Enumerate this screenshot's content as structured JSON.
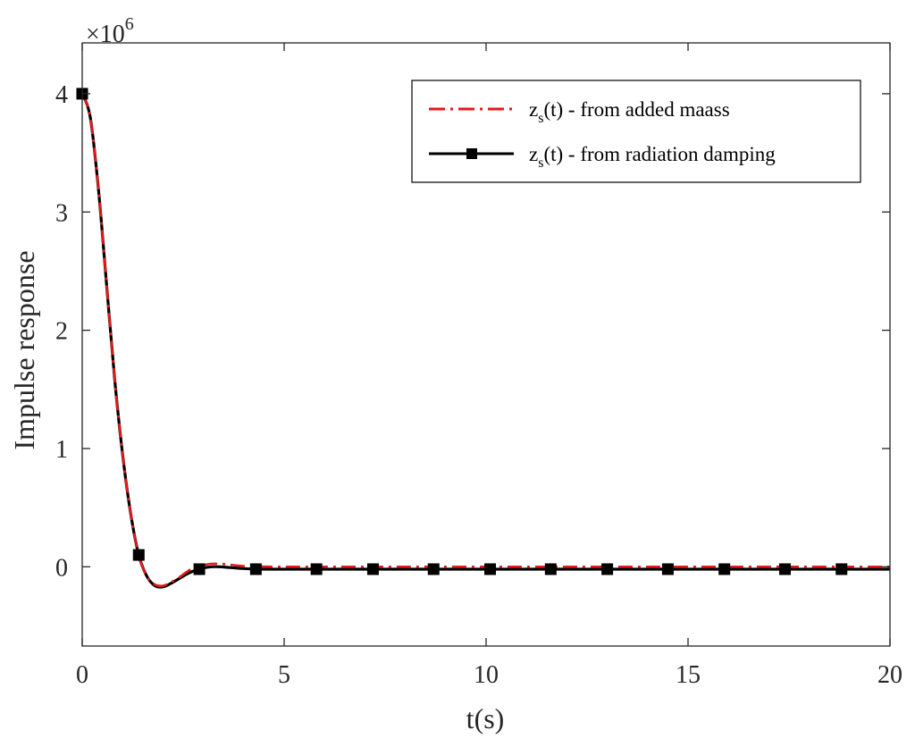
{
  "chart_data": {
    "type": "line",
    "xlabel": "t(s)",
    "ylabel": "Impulse response",
    "y_multiplier": {
      "base": "×10",
      "exponent": "6"
    },
    "xlim": [
      0,
      20
    ],
    "ylim": [
      -0.67,
      4.43
    ],
    "x_ticks": [
      0,
      5,
      10,
      15,
      20
    ],
    "x_tick_labels": [
      "0",
      "5",
      "10",
      "15",
      "20"
    ],
    "y_ticks": [
      0,
      1,
      2,
      3,
      4
    ],
    "y_tick_labels": [
      "0",
      "1",
      "2",
      "3",
      "4"
    ],
    "grid": false,
    "box": true,
    "legend": {
      "position": "top-right",
      "entries": [
        {
          "prefix": "z",
          "sub": "s",
          "suffix": "(t) - from added maass"
        },
        {
          "prefix": "z",
          "sub": "s",
          "suffix": "(t) - from radiation damping"
        }
      ]
    },
    "series": [
      {
        "name": "zs(t) - from added maass",
        "color": "#e41a1c",
        "line_style": "dashdot",
        "marker": "none",
        "x": [
          0,
          0.2,
          0.4,
          0.6,
          0.8,
          1.0,
          1.2,
          1.4,
          1.6,
          1.8,
          2.0,
          2.2,
          2.4,
          2.6,
          2.8,
          3.0,
          3.2,
          3.4,
          3.6,
          3.8,
          4.0,
          4.4,
          4.8,
          5.2,
          6,
          7,
          8,
          10,
          12,
          14,
          16,
          18,
          20
        ],
        "y": [
          4.0,
          3.8,
          3.2,
          2.4,
          1.6,
          0.95,
          0.45,
          0.1,
          -0.08,
          -0.15,
          -0.16,
          -0.13,
          -0.09,
          -0.04,
          0.0,
          0.015,
          0.025,
          0.025,
          0.02,
          0.012,
          0.006,
          0.002,
          0.0,
          0.0,
          0.0,
          0.0,
          0.0,
          0.0,
          0.0,
          0.0,
          0.0,
          0.0,
          0.0
        ]
      },
      {
        "name": "zs(t) - from radiation damping",
        "color": "#000000",
        "line_style": "solid",
        "marker": "square",
        "x": [
          0,
          0.2,
          0.4,
          0.6,
          0.8,
          1.0,
          1.2,
          1.4,
          1.6,
          1.8,
          2.0,
          2.2,
          2.4,
          2.6,
          2.8,
          3.0,
          3.2,
          3.4,
          3.6,
          3.8,
          4.0,
          4.4,
          4.8,
          5.2,
          6,
          7,
          8,
          10,
          12,
          14,
          16,
          18,
          20
        ],
        "y": [
          4.0,
          3.8,
          3.2,
          2.4,
          1.6,
          0.95,
          0.45,
          0.1,
          -0.08,
          -0.16,
          -0.17,
          -0.14,
          -0.1,
          -0.06,
          -0.03,
          -0.01,
          0.0,
          0.0,
          -0.005,
          -0.01,
          -0.015,
          -0.02,
          -0.02,
          -0.02,
          -0.02,
          -0.02,
          -0.02,
          -0.02,
          -0.02,
          -0.02,
          -0.02,
          -0.02,
          -0.02
        ],
        "marker_x": [
          0,
          1.4,
          2.9,
          4.3,
          5.8,
          7.2,
          8.7,
          10.1,
          11.6,
          13.0,
          14.5,
          15.9,
          17.4,
          18.8
        ],
        "marker_y": [
          4.0,
          0.1,
          -0.02,
          -0.02,
          -0.02,
          -0.02,
          -0.02,
          -0.02,
          -0.02,
          -0.02,
          -0.02,
          -0.02,
          -0.02,
          -0.02
        ]
      }
    ]
  }
}
